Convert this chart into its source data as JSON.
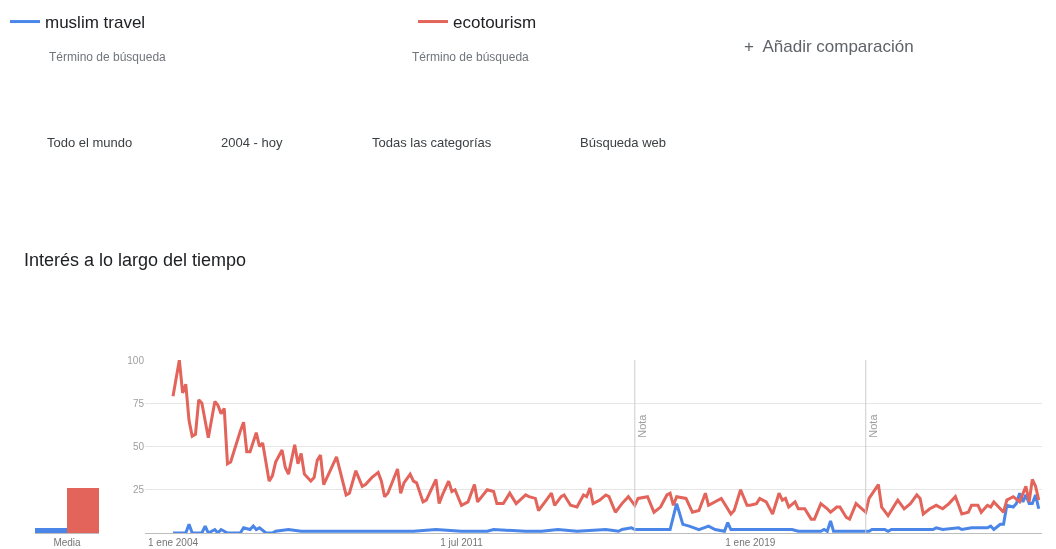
{
  "chart_data": [
    {
      "type": "bar",
      "categories": [
        "Media"
      ],
      "ylim": [
        0,
        100
      ],
      "tick_labels": "x",
      "grid": false,
      "legend": false,
      "series": [
        {
          "color": "#4a86e8",
          "values": [
            3
          ]
        },
        {
          "color": "#e2645a",
          "values": [
            26
          ]
        }
      ]
    },
    {
      "type": "line",
      "title": "Interés a lo largo del tiempo",
      "legend": "top left",
      "grid": "y",
      "marker": "none",
      "line_style": "solid",
      "annotations": [
        "Término de búsqueda",
        "Término de búsqueda",
        "+  Añadir comparación",
        "Todo el mundo",
        "2004 - hoy",
        "Todas las categorías",
        "Búsqueda web"
      ],
      "xlim": [
        "2003-04-10",
        "2026-08-01"
      ],
      "xticks": [
        {
          "value": "2004-01-01",
          "label": "1 ene 2004"
        },
        {
          "value": "2011-07-01",
          "label": "1 jul 2011"
        },
        {
          "value": "2019-01-01",
          "label": "1 ene 2019"
        }
      ],
      "ylim": [
        0,
        100
      ],
      "yticks": [
        25,
        50,
        75,
        100
      ],
      "ref_lines": [
        {
          "axis": "x",
          "value": "2016-01",
          "label": "Nota",
          "color": "#cccccc"
        },
        {
          "axis": "x",
          "value": "2022-01",
          "label": "Nota",
          "color": "#cccccc"
        }
      ],
      "series": [
        {
          "name": "muslim travel",
          "color": "#4a86e8",
          "x": [
            "2004-01",
            "2004-05",
            "2004-06",
            "2004-07",
            "2004-10",
            "2004-11",
            "2004-12",
            "2005-02",
            "2005-03",
            "2005-04",
            "2005-06",
            "2005-10",
            "2005-11",
            "2006-01",
            "2006-02",
            "2006-03",
            "2006-04",
            "2006-06",
            "2006-08",
            "2006-09",
            "2007-01",
            "2007-05",
            "2007-10",
            "2009-01",
            "2010-04",
            "2010-11",
            "2011-07",
            "2012-03",
            "2012-05",
            "2013-03",
            "2013-08",
            "2014-01",
            "2014-07",
            "2015-04",
            "2015-08",
            "2015-09",
            "2015-12",
            "2016-01",
            "2016-12",
            "2017-02",
            "2017-04",
            "2017-06",
            "2017-09",
            "2017-12",
            "2018-02",
            "2018-05",
            "2018-06",
            "2018-07",
            "2019-04",
            "2020-02",
            "2020-04",
            "2020-11",
            "2020-12",
            "2021-01",
            "2021-02",
            "2021-03",
            "2022-02",
            "2022-03",
            "2022-07",
            "2022-08",
            "2022-09",
            "2023-10",
            "2023-11",
            "2024-01",
            "2024-06",
            "2024-07",
            "2024-10",
            "2025-03",
            "2025-04",
            "2025-05",
            "2025-07",
            "2025-08",
            "2025-09",
            "2025-11",
            "2025-12",
            "2026-01",
            "2026-02",
            "2026-03",
            "2026-04",
            "2026-05",
            "2026-06",
            "2026-07"
          ],
          "values": [
            0,
            0,
            5,
            0,
            0,
            4,
            0,
            2,
            0,
            2,
            0,
            0,
            3,
            2,
            4,
            2,
            3,
            0,
            0,
            1,
            2,
            1,
            1,
            1,
            1,
            2,
            1,
            1,
            2,
            1,
            1,
            2,
            1,
            2,
            1,
            2,
            3,
            2,
            2,
            17,
            5,
            4,
            2,
            4,
            2,
            1,
            6,
            2,
            2,
            2,
            1,
            1,
            2,
            1,
            7,
            1,
            1,
            2,
            2,
            1,
            2,
            2,
            3,
            2,
            3,
            2,
            3,
            3,
            4,
            2,
            5,
            5,
            16,
            15,
            17,
            23,
            18,
            22,
            17,
            17,
            22,
            14
          ]
        },
        {
          "name": "ecotourism",
          "color": "#e2645a",
          "x": [
            "2004-01",
            "2004-03",
            "2004-04",
            "2004-05",
            "2004-06",
            "2004-07",
            "2004-08",
            "2004-09",
            "2004-10",
            "2004-12",
            "2005-02",
            "2005-03",
            "2005-04",
            "2005-05",
            "2005-06",
            "2005-07",
            "2005-10",
            "2005-11",
            "2005-12",
            "2006-01",
            "2006-03",
            "2006-04",
            "2006-05",
            "2006-07",
            "2006-08",
            "2006-09",
            "2006-11",
            "2006-12",
            "2007-01",
            "2007-03",
            "2007-04",
            "2007-05",
            "2007-06",
            "2007-08",
            "2007-09",
            "2007-10",
            "2007-11",
            "2007-12",
            "2008-01",
            "2008-04",
            "2008-07",
            "2008-08",
            "2008-10",
            "2008-12",
            "2009-01",
            "2009-03",
            "2009-05",
            "2009-06",
            "2009-07",
            "2009-08",
            "2009-11",
            "2009-12",
            "2010-01",
            "2010-03",
            "2010-04",
            "2010-05",
            "2010-07",
            "2010-08",
            "2010-11",
            "2010-12",
            "2011-01",
            "2011-03",
            "2011-04",
            "2011-05",
            "2011-07",
            "2011-09",
            "2011-11",
            "2011-12",
            "2012-03",
            "2012-05",
            "2012-06",
            "2012-08",
            "2012-10",
            "2012-12",
            "2013-03",
            "2013-04",
            "2013-06",
            "2013-07",
            "2013-09",
            "2013-11",
            "2013-12",
            "2014-02",
            "2014-03",
            "2014-05",
            "2014-07",
            "2014-09",
            "2014-10",
            "2014-11",
            "2014-12",
            "2015-02",
            "2015-04",
            "2015-05",
            "2015-07",
            "2015-09",
            "2015-11",
            "2016-01",
            "2016-02",
            "2016-05",
            "2016-07",
            "2016-09",
            "2016-11",
            "2016-12",
            "2017-01",
            "2017-02",
            "2017-05",
            "2017-07",
            "2017-09",
            "2017-11",
            "2017-12",
            "2018-04",
            "2018-07",
            "2018-08",
            "2018-10",
            "2018-12",
            "2019-01",
            "2019-03",
            "2019-04",
            "2019-06",
            "2019-08",
            "2019-10",
            "2019-11",
            "2019-12",
            "2020-01",
            "2020-03",
            "2020-04",
            "2020-06",
            "2020-08",
            "2020-09",
            "2020-11",
            "2021-01",
            "2021-02",
            "2021-04",
            "2021-05",
            "2021-07",
            "2021-08",
            "2021-10",
            "2022-01",
            "2022-02",
            "2022-05",
            "2022-06",
            "2022-08",
            "2022-10",
            "2022-11",
            "2023-01",
            "2023-03",
            "2023-05",
            "2023-06",
            "2023-07",
            "2023-09",
            "2023-11",
            "2024-01",
            "2024-03",
            "2024-05",
            "2024-06",
            "2024-07",
            "2024-09",
            "2024-10",
            "2024-12",
            "2025-01",
            "2025-03",
            "2025-04",
            "2025-05",
            "2025-08",
            "2025-09",
            "2025-11",
            "2026-01",
            "2026-03",
            "2026-04",
            "2026-05",
            "2026-06",
            "2026-07"
          ],
          "values": [
            79,
            100,
            81,
            86,
            65,
            56,
            57,
            77,
            75,
            55,
            76,
            74,
            69,
            72,
            40,
            41,
            59,
            64,
            47,
            47,
            58,
            50,
            52,
            30,
            33,
            41,
            48,
            38,
            34,
            51,
            40,
            46,
            34,
            30,
            32,
            42,
            45,
            28,
            32,
            44,
            22,
            23,
            36,
            27,
            28,
            32,
            35,
            30,
            21,
            23,
            37,
            23,
            29,
            34,
            30,
            29,
            18,
            19,
            31,
            17,
            22,
            30,
            24,
            25,
            16,
            18,
            28,
            18,
            25,
            24,
            17,
            17,
            23,
            17,
            22,
            21,
            20,
            13,
            18,
            23,
            16,
            21,
            22,
            16,
            15,
            22,
            21,
            26,
            17,
            19,
            22,
            21,
            12,
            17,
            21,
            16,
            20,
            21,
            12,
            15,
            22,
            23,
            16,
            21,
            20,
            12,
            13,
            23,
            16,
            20,
            11,
            13,
            25,
            16,
            16,
            17,
            20,
            18,
            11,
            23,
            19,
            20,
            15,
            18,
            14,
            14,
            8,
            8,
            17,
            14,
            12,
            15,
            15,
            9,
            8,
            17,
            12,
            20,
            28,
            15,
            10,
            16,
            19,
            14,
            17,
            22,
            20,
            11,
            14,
            16,
            14,
            17,
            21,
            16,
            11,
            12,
            16,
            16,
            12,
            16,
            15,
            18,
            12,
            19,
            21,
            18,
            27,
            18,
            31,
            27,
            19
          ]
        }
      ]
    }
  ]
}
